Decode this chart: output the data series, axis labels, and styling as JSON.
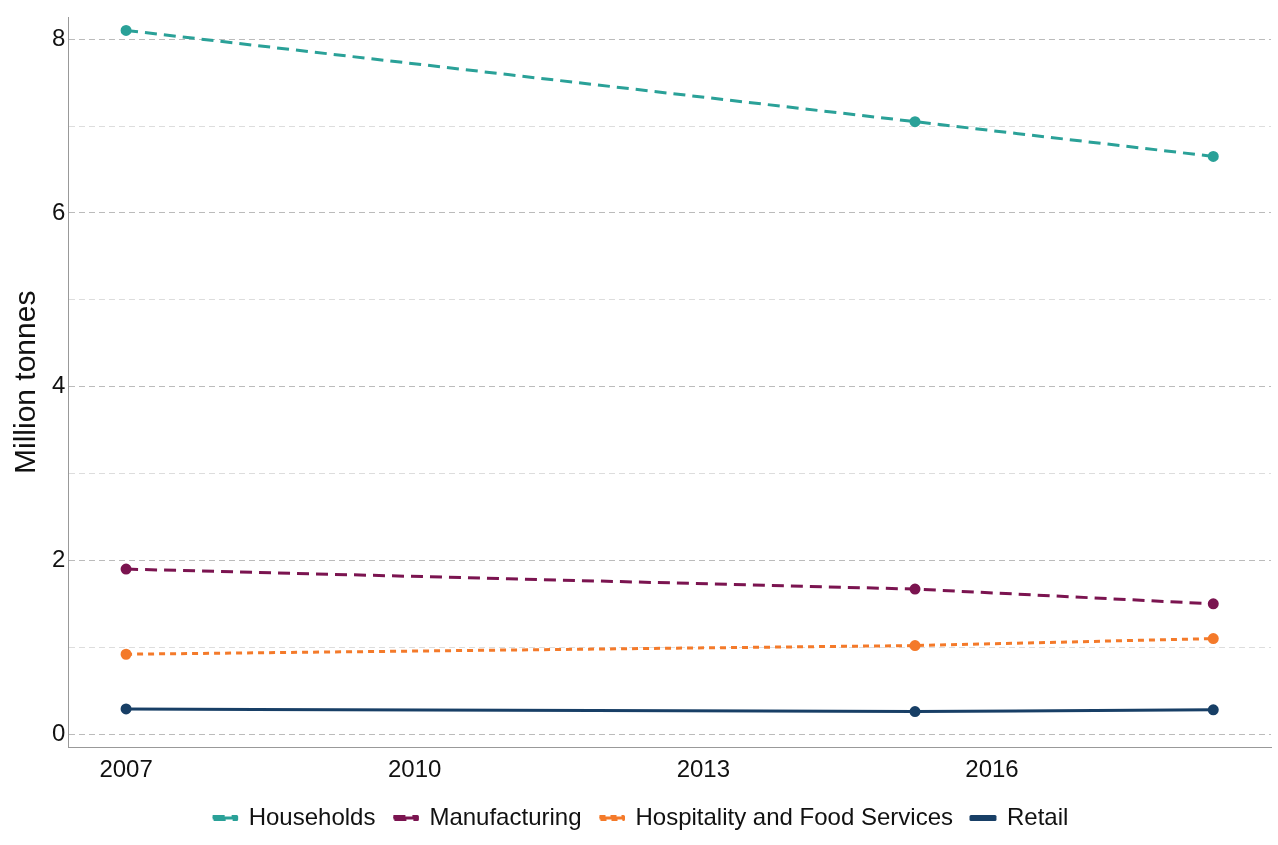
{
  "chart_data": {
    "type": "line",
    "ylabel": "Million tonnes",
    "x": [
      2007,
      2015.2,
      2018.3
    ],
    "series": [
      {
        "name": "Households",
        "color": "#2aa198",
        "line_style": "dashed",
        "values": [
          8.1,
          7.05,
          6.65
        ]
      },
      {
        "name": "Manufacturing",
        "color": "#7b1450",
        "line_style": "dashed",
        "values": [
          1.9,
          1.67,
          1.5
        ]
      },
      {
        "name": "Hospitality and Food Services",
        "color": "#f47a2a",
        "line_style": "dotted",
        "values": [
          0.92,
          1.02,
          1.1
        ]
      },
      {
        "name": "Retail",
        "color": "#183f66",
        "line_style": "solid",
        "values": [
          0.29,
          0.26,
          0.28
        ]
      }
    ],
    "xlim": [
      2006.4,
      2018.9
    ],
    "xticks": [
      2007,
      2010,
      2013,
      2016
    ],
    "ylim": [
      -0.15,
      8.25
    ],
    "yticks": [
      0,
      {
        "value": 1,
        "label": null
      },
      2,
      {
        "value": 3,
        "label": null
      },
      4,
      {
        "value": 5,
        "label": null
      },
      6,
      {
        "value": 7,
        "label": null
      },
      8
    ],
    "grid": "y",
    "legend": "bottom",
    "marker": "circle"
  }
}
